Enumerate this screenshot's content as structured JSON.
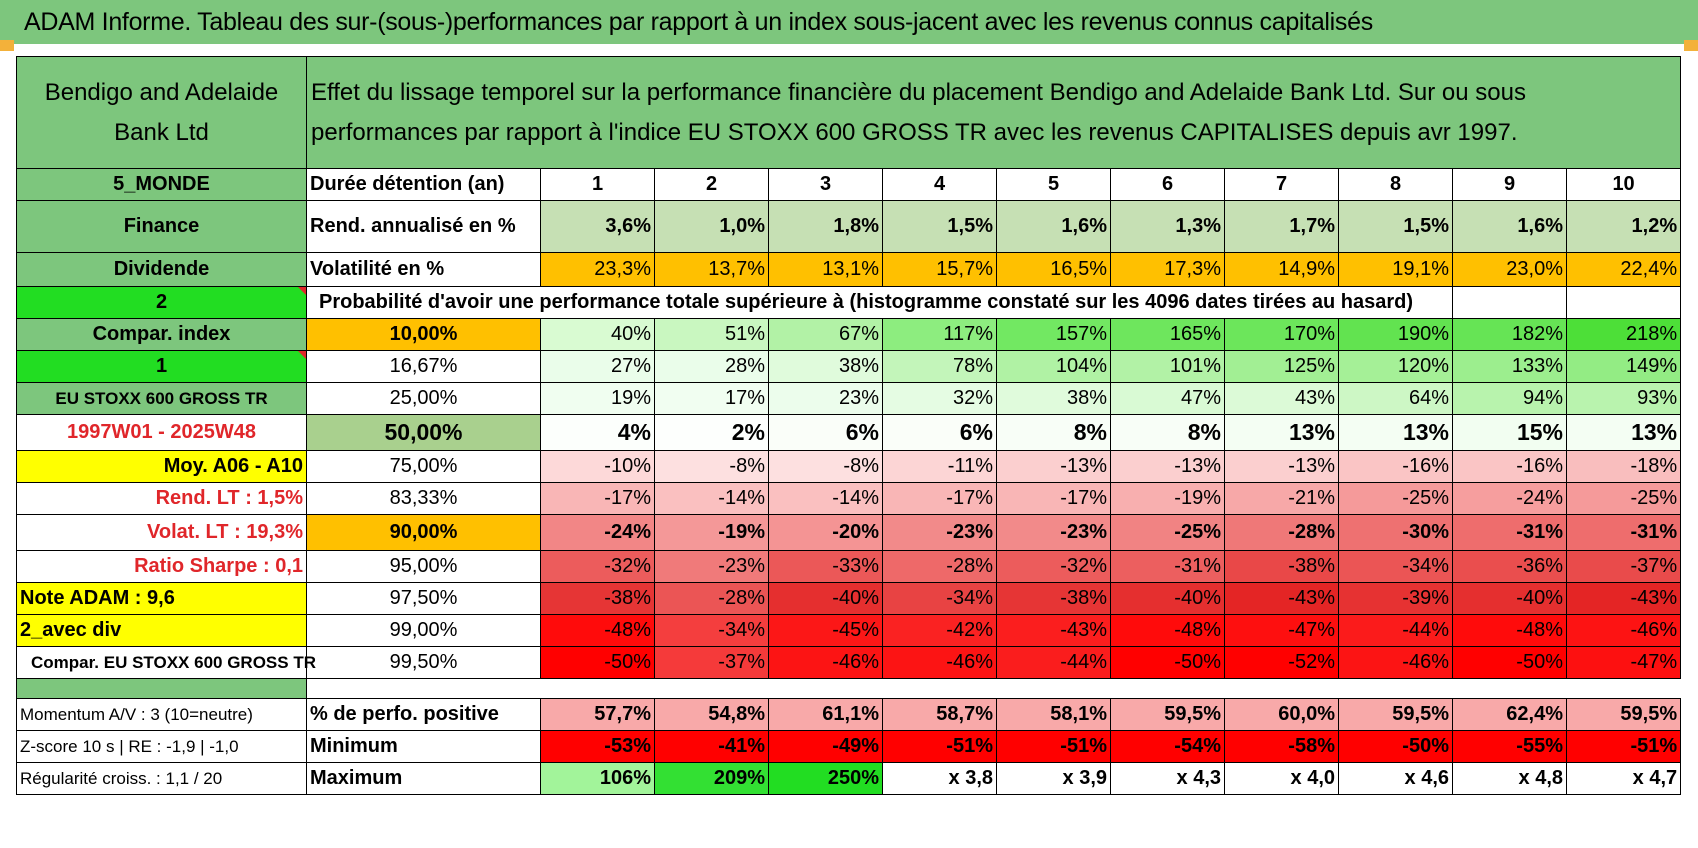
{
  "title": "ADAM Informe. Tableau des sur-(sous-)performances par rapport à un index sous-jacent avec les revenus connus capitalisés",
  "header": {
    "asset_name": "Bendigo and Adelaide Bank Ltd",
    "description": "Effet du lissage temporel sur la performance financière du placement Bendigo and Adelaide Bank Ltd. Sur ou sous performances par rapport à l'indice EU STOXX 600 GROSS TR avec les revenus CAPITALISES depuis avr 1997."
  },
  "rows": [
    {
      "left": {
        "text": "5_MONDE",
        "bg": "#7dc67d",
        "color": "#000000",
        "align": "center",
        "bold": true
      },
      "label": {
        "text": "Durée détention (an)",
        "bg": "#ffffff"
      },
      "cells": [
        {
          "v": "1",
          "bg": "#ffffff"
        },
        {
          "v": "2",
          "bg": "#ffffff"
        },
        {
          "v": "3",
          "bg": "#ffffff"
        },
        {
          "v": "4",
          "bg": "#ffffff"
        },
        {
          "v": "5",
          "bg": "#ffffff"
        },
        {
          "v": "6",
          "bg": "#ffffff"
        },
        {
          "v": "7",
          "bg": "#ffffff"
        },
        {
          "v": "8",
          "bg": "#ffffff"
        },
        {
          "v": "9",
          "bg": "#ffffff"
        },
        {
          "v": "10",
          "bg": "#ffffff"
        }
      ]
    },
    {
      "left": {
        "text": "Finance",
        "bg": "#7dc67d",
        "color": "#000000",
        "align": "center",
        "bold": true
      },
      "label": {
        "text": "Rend. annualisé en %",
        "bg": "#ffffff"
      },
      "cells": [
        {
          "v": "3,6%",
          "bg": "#c6e0b4"
        },
        {
          "v": "1,0%",
          "bg": "#c6e0b4"
        },
        {
          "v": "1,8%",
          "bg": "#c6e0b4"
        },
        {
          "v": "1,5%",
          "bg": "#c6e0b4"
        },
        {
          "v": "1,6%",
          "bg": "#c6e0b4"
        },
        {
          "v": "1,3%",
          "bg": "#c6e0b4"
        },
        {
          "v": "1,7%",
          "bg": "#c6e0b4"
        },
        {
          "v": "1,5%",
          "bg": "#c6e0b4"
        },
        {
          "v": "1,6%",
          "bg": "#c6e0b4"
        },
        {
          "v": "1,2%",
          "bg": "#c6e0b4"
        }
      ]
    },
    {
      "left": {
        "text": "Dividende",
        "bg": "#7dc67d",
        "color": "#000000",
        "align": "center",
        "bold": true
      },
      "label": {
        "text": "Volatilité en %",
        "bg": "#ffffff"
      },
      "cells": [
        {
          "v": "23,3%",
          "bg": "#ffc000"
        },
        {
          "v": "13,7%",
          "bg": "#ffc000"
        },
        {
          "v": "13,1%",
          "bg": "#ffc000"
        },
        {
          "v": "15,7%",
          "bg": "#ffc000"
        },
        {
          "v": "16,5%",
          "bg": "#ffc000"
        },
        {
          "v": "17,3%",
          "bg": "#ffc000"
        },
        {
          "v": "14,9%",
          "bg": "#ffc000"
        },
        {
          "v": "19,1%",
          "bg": "#ffc000"
        },
        {
          "v": "23,0%",
          "bg": "#ffc000"
        },
        {
          "v": "22,4%",
          "bg": "#ffc000"
        }
      ]
    },
    {
      "span": true,
      "left": {
        "text": "2",
        "bg": "#22dd22",
        "color": "#000000",
        "align": "center",
        "bold": true,
        "marker": true
      },
      "span_text": "Probabilité d'avoir une performance totale supérieure à (histogramme constaté sur les 4096 dates tirées au hasard)"
    },
    {
      "left": {
        "text": "Compar. index",
        "bg": "#7dc67d",
        "color": "#000000",
        "align": "center",
        "bold": true
      },
      "label": {
        "text": "10,00%",
        "bg": "#ffc000",
        "align": "center",
        "bold": true
      },
      "cells": [
        {
          "v": "40%",
          "bg": "#d9fbd2"
        },
        {
          "v": "51%",
          "bg": "#c9f7c0"
        },
        {
          "v": "67%",
          "bg": "#b2f2a6"
        },
        {
          "v": "117%",
          "bg": "#8ded7f"
        },
        {
          "v": "157%",
          "bg": "#72e862"
        },
        {
          "v": "165%",
          "bg": "#6ee65d"
        },
        {
          "v": "170%",
          "bg": "#6ce65b"
        },
        {
          "v": "190%",
          "bg": "#62e350"
        },
        {
          "v": "182%",
          "bg": "#66e455"
        },
        {
          "v": "218%",
          "bg": "#4ddf38"
        }
      ]
    },
    {
      "left": {
        "text": "1",
        "bg": "#22dd22",
        "color": "#000000",
        "align": "center",
        "bold": true,
        "marker": true
      },
      "label": {
        "text": "16,67%",
        "bg": "#ffffff",
        "align": "center"
      },
      "cells": [
        {
          "v": "27%",
          "bg": "#eafdea"
        },
        {
          "v": "28%",
          "bg": "#eafdea"
        },
        {
          "v": "38%",
          "bg": "#e0fbdc"
        },
        {
          "v": "78%",
          "bg": "#c3f5ba"
        },
        {
          "v": "104%",
          "bg": "#b0f2a4"
        },
        {
          "v": "101%",
          "bg": "#b2f2a6"
        },
        {
          "v": "125%",
          "bg": "#a2ef94"
        },
        {
          "v": "120%",
          "bg": "#a5f097"
        },
        {
          "v": "133%",
          "bg": "#9cee8e"
        },
        {
          "v": "149%",
          "bg": "#93ec84"
        }
      ]
    },
    {
      "left": {
        "text": "EU STOXX 600 GROSS TR",
        "bg": "#7dc67d",
        "color": "#000000",
        "align": "center",
        "bold": true,
        "small": true
      },
      "label": {
        "text": "25,00%",
        "bg": "#ffffff",
        "align": "center"
      },
      "cells": [
        {
          "v": "19%",
          "bg": "#f0fef0"
        },
        {
          "v": "17%",
          "bg": "#f1fef1"
        },
        {
          "v": "23%",
          "bg": "#ecfdec"
        },
        {
          "v": "32%",
          "bg": "#e5fce3"
        },
        {
          "v": "38%",
          "bg": "#e0fbdc"
        },
        {
          "v": "47%",
          "bg": "#d9fad4"
        },
        {
          "v": "43%",
          "bg": "#dcfad7"
        },
        {
          "v": "64%",
          "bg": "#cdf7c5"
        },
        {
          "v": "94%",
          "bg": "#b8f3ad"
        },
        {
          "v": "93%",
          "bg": "#b9f3ae"
        }
      ]
    },
    {
      "left": {
        "text": "1997W01 - 2025W48",
        "bg": "#ffffff",
        "color": "#e0262a",
        "align": "center",
        "bold": true
      },
      "label": {
        "text": "50,00%",
        "bg": "#a9d08e",
        "align": "center",
        "bold": true,
        "big": true
      },
      "big": true,
      "cells": [
        {
          "v": "4%",
          "bg": "#fcfffc"
        },
        {
          "v": "2%",
          "bg": "#fdfffd"
        },
        {
          "v": "6%",
          "bg": "#fafef9"
        },
        {
          "v": "6%",
          "bg": "#fafef9"
        },
        {
          "v": "8%",
          "bg": "#f8fef7"
        },
        {
          "v": "8%",
          "bg": "#f8fef7"
        },
        {
          "v": "13%",
          "bg": "#f4fef3"
        },
        {
          "v": "13%",
          "bg": "#f4fef3"
        },
        {
          "v": "15%",
          "bg": "#f2fef1"
        },
        {
          "v": "13%",
          "bg": "#f4fef3"
        }
      ]
    },
    {
      "left": {
        "text": "Moy. A06 - A10",
        "bg": "#ffff00",
        "color": "#000000",
        "align": "right",
        "bold": true
      },
      "label": {
        "text": "75,00%",
        "bg": "#ffffff",
        "align": "center"
      },
      "cells": [
        {
          "v": "-10%",
          "bg": "#fdd9d9"
        },
        {
          "v": "-8%",
          "bg": "#fde0e0"
        },
        {
          "v": "-8%",
          "bg": "#fde0e0"
        },
        {
          "v": "-11%",
          "bg": "#fcd5d5"
        },
        {
          "v": "-13%",
          "bg": "#fbcfcf"
        },
        {
          "v": "-13%",
          "bg": "#fbcfcf"
        },
        {
          "v": "-13%",
          "bg": "#fbcfcf"
        },
        {
          "v": "-16%",
          "bg": "#fac5c5"
        },
        {
          "v": "-16%",
          "bg": "#fac5c5"
        },
        {
          "v": "-18%",
          "bg": "#f9bebe"
        }
      ]
    },
    {
      "left": {
        "text": "Rend. LT :    1,5%",
        "bg": "#ffffff",
        "color": "#e0262a",
        "align": "right",
        "bold": true
      },
      "label": {
        "text": "83,33%",
        "bg": "#ffffff",
        "align": "center"
      },
      "cells": [
        {
          "v": "-17%",
          "bg": "#f9b6b6"
        },
        {
          "v": "-14%",
          "bg": "#fac0c0"
        },
        {
          "v": "-14%",
          "bg": "#fac0c0"
        },
        {
          "v": "-17%",
          "bg": "#f9b6b6"
        },
        {
          "v": "-17%",
          "bg": "#f9b6b6"
        },
        {
          "v": "-19%",
          "bg": "#f8afaf"
        },
        {
          "v": "-21%",
          "bg": "#f7a8a8"
        },
        {
          "v": "-25%",
          "bg": "#f59a9a"
        },
        {
          "v": "-24%",
          "bg": "#f69e9e"
        },
        {
          "v": "-25%",
          "bg": "#f59a9a"
        }
      ]
    },
    {
      "left": {
        "text": "Volat. LT :    19,3%",
        "bg": "#ffffff",
        "color": "#e0262a",
        "align": "right",
        "bold": true
      },
      "label": {
        "text": "90,00%",
        "bg": "#ffc000",
        "align": "center",
        "bold": true
      },
      "bold": true,
      "cells": [
        {
          "v": "-24%",
          "bg": "#f28686"
        },
        {
          "v": "-19%",
          "bg": "#f49898"
        },
        {
          "v": "-20%",
          "bg": "#f49494"
        },
        {
          "v": "-23%",
          "bg": "#f28a8a"
        },
        {
          "v": "-23%",
          "bg": "#f28a8a"
        },
        {
          "v": "-25%",
          "bg": "#f18383"
        },
        {
          "v": "-28%",
          "bg": "#ef7878"
        },
        {
          "v": "-30%",
          "bg": "#ee7171"
        },
        {
          "v": "-31%",
          "bg": "#ee6d6d"
        },
        {
          "v": "-31%",
          "bg": "#ee6d6d"
        }
      ]
    },
    {
      "left": {
        "text": "Ratio Sharpe :     0,1",
        "bg": "#ffffff",
        "color": "#e0262a",
        "align": "right",
        "bold": true
      },
      "label": {
        "text": "95,00%",
        "bg": "#ffffff",
        "align": "center"
      },
      "cells": [
        {
          "v": "-32%",
          "bg": "#ec5c5c"
        },
        {
          "v": "-23%",
          "bg": "#f07a7a"
        },
        {
          "v": "-33%",
          "bg": "#eb5858"
        },
        {
          "v": "-28%",
          "bg": "#ee6969"
        },
        {
          "v": "-32%",
          "bg": "#ec5c5c"
        },
        {
          "v": "-31%",
          "bg": "#ec5f5f"
        },
        {
          "v": "-38%",
          "bg": "#e94848"
        },
        {
          "v": "-34%",
          "bg": "#eb5555"
        },
        {
          "v": "-36%",
          "bg": "#ea4e4e"
        },
        {
          "v": "-37%",
          "bg": "#e94b4b"
        }
      ]
    },
    {
      "left": {
        "text": "Note ADAM : 9,6",
        "bg": "#ffff00",
        "color": "#000000",
        "align": "left",
        "bold": true
      },
      "label": {
        "text": "97,50%",
        "bg": "#ffffff",
        "align": "center"
      },
      "cells": [
        {
          "v": "-38%",
          "bg": "#e63535"
        },
        {
          "v": "-28%",
          "bg": "#eb5555"
        },
        {
          "v": "-40%",
          "bg": "#e52f2f"
        },
        {
          "v": "-34%",
          "bg": "#e84343"
        },
        {
          "v": "-38%",
          "bg": "#e63535"
        },
        {
          "v": "-40%",
          "bg": "#e52f2f"
        },
        {
          "v": "-43%",
          "bg": "#e42525"
        },
        {
          "v": "-39%",
          "bg": "#e63232"
        },
        {
          "v": "-40%",
          "bg": "#e52f2f"
        },
        {
          "v": "-43%",
          "bg": "#e42525"
        }
      ]
    },
    {
      "left": {
        "text": "2_avec div",
        "bg": "#ffff00",
        "color": "#000000",
        "align": "left",
        "bold": true
      },
      "label": {
        "text": "99,00%",
        "bg": "#ffffff",
        "align": "center"
      },
      "cells": [
        {
          "v": "-48%",
          "bg": "#ff0b0b"
        },
        {
          "v": "-34%",
          "bg": "#f43e3e"
        },
        {
          "v": "-45%",
          "bg": "#fc1717"
        },
        {
          "v": "-42%",
          "bg": "#fa2222"
        },
        {
          "v": "-43%",
          "bg": "#fb1e1e"
        },
        {
          "v": "-48%",
          "bg": "#ff0b0b"
        },
        {
          "v": "-47%",
          "bg": "#fe0f0f"
        },
        {
          "v": "-44%",
          "bg": "#fb1b1b"
        },
        {
          "v": "-48%",
          "bg": "#ff0b0b"
        },
        {
          "v": "-46%",
          "bg": "#fd1313"
        }
      ]
    },
    {
      "left": {
        "text": "Compar. EU STOXX 600 GROSS TR",
        "bg": "#ffffff",
        "color": "#000000",
        "align": "left",
        "bold": true,
        "small": true,
        "indent": true
      },
      "label": {
        "text": "99,50%",
        "bg": "#ffffff",
        "align": "center"
      },
      "cells": [
        {
          "v": "-50%",
          "bg": "#ff0000"
        },
        {
          "v": "-37%",
          "bg": "#f53a3a"
        },
        {
          "v": "-46%",
          "bg": "#fc1414"
        },
        {
          "v": "-46%",
          "bg": "#fc1414"
        },
        {
          "v": "-44%",
          "bg": "#fa1d1d"
        },
        {
          "v": "-50%",
          "bg": "#ff0000"
        },
        {
          "v": "-52%",
          "bg": "#ff0000"
        },
        {
          "v": "-46%",
          "bg": "#fc1414"
        },
        {
          "v": "-50%",
          "bg": "#ff0000"
        },
        {
          "v": "-47%",
          "bg": "#fd1010"
        }
      ]
    },
    {
      "gap": true
    },
    {
      "left": {
        "text": "Momentum A/V : 3 (10=neutre)",
        "bg": "#ffffff",
        "color": "#000000",
        "align": "left",
        "bold": false,
        "small": true
      },
      "label": {
        "text": "% de perfo. positive",
        "bg": "#ffffff"
      },
      "bold": true,
      "cells": [
        {
          "v": "57,7%",
          "bg": "#f8a9a9"
        },
        {
          "v": "54,8%",
          "bg": "#f8a9a9"
        },
        {
          "v": "61,1%",
          "bg": "#f8a9a9"
        },
        {
          "v": "58,7%",
          "bg": "#f8a9a9"
        },
        {
          "v": "58,1%",
          "bg": "#f8a9a9"
        },
        {
          "v": "59,5%",
          "bg": "#f8a9a9"
        },
        {
          "v": "60,0%",
          "bg": "#f8a9a9"
        },
        {
          "v": "59,5%",
          "bg": "#f8a9a9"
        },
        {
          "v": "62,4%",
          "bg": "#f8a9a9"
        },
        {
          "v": "59,5%",
          "bg": "#f8a9a9"
        }
      ]
    },
    {
      "left": {
        "text": "Z-score 10 s | RE : -1,9 | -1,0",
        "bg": "#ffffff",
        "color": "#000000",
        "align": "left",
        "bold": false,
        "small": true
      },
      "label": {
        "text": "Minimum",
        "bg": "#ffffff"
      },
      "bold": true,
      "cells": [
        {
          "v": "-53%",
          "bg": "#ff0000"
        },
        {
          "v": "-41%",
          "bg": "#ff0000"
        },
        {
          "v": "-49%",
          "bg": "#ff0000"
        },
        {
          "v": "-51%",
          "bg": "#ff0000"
        },
        {
          "v": "-51%",
          "bg": "#ff0000"
        },
        {
          "v": "-54%",
          "bg": "#ff0000"
        },
        {
          "v": "-58%",
          "bg": "#ff0000"
        },
        {
          "v": "-50%",
          "bg": "#ff0000"
        },
        {
          "v": "-55%",
          "bg": "#ff0000"
        },
        {
          "v": "-51%",
          "bg": "#ff0000"
        }
      ]
    },
    {
      "left": {
        "text": "Régularité croiss. : 1,1 / 20",
        "bg": "#ffffff",
        "color": "#000000",
        "align": "left",
        "bold": false,
        "small": true
      },
      "label": {
        "text": "Maximum",
        "bg": "#ffffff"
      },
      "bold": true,
      "cells": [
        {
          "v": "106%",
          "bg": "#a2f49a"
        },
        {
          "v": "209%",
          "bg": "#33e033"
        },
        {
          "v": "250%",
          "bg": "#22dd22"
        },
        {
          "v": "x 3,8",
          "bg": "#ffffff"
        },
        {
          "v": "x 3,9",
          "bg": "#ffffff"
        },
        {
          "v": "x 4,3",
          "bg": "#ffffff"
        },
        {
          "v": "x 4,0",
          "bg": "#ffffff"
        },
        {
          "v": "x 4,6",
          "bg": "#ffffff"
        },
        {
          "v": "x 4,8",
          "bg": "#ffffff"
        },
        {
          "v": "x 4,7",
          "bg": "#ffffff"
        }
      ]
    }
  ]
}
